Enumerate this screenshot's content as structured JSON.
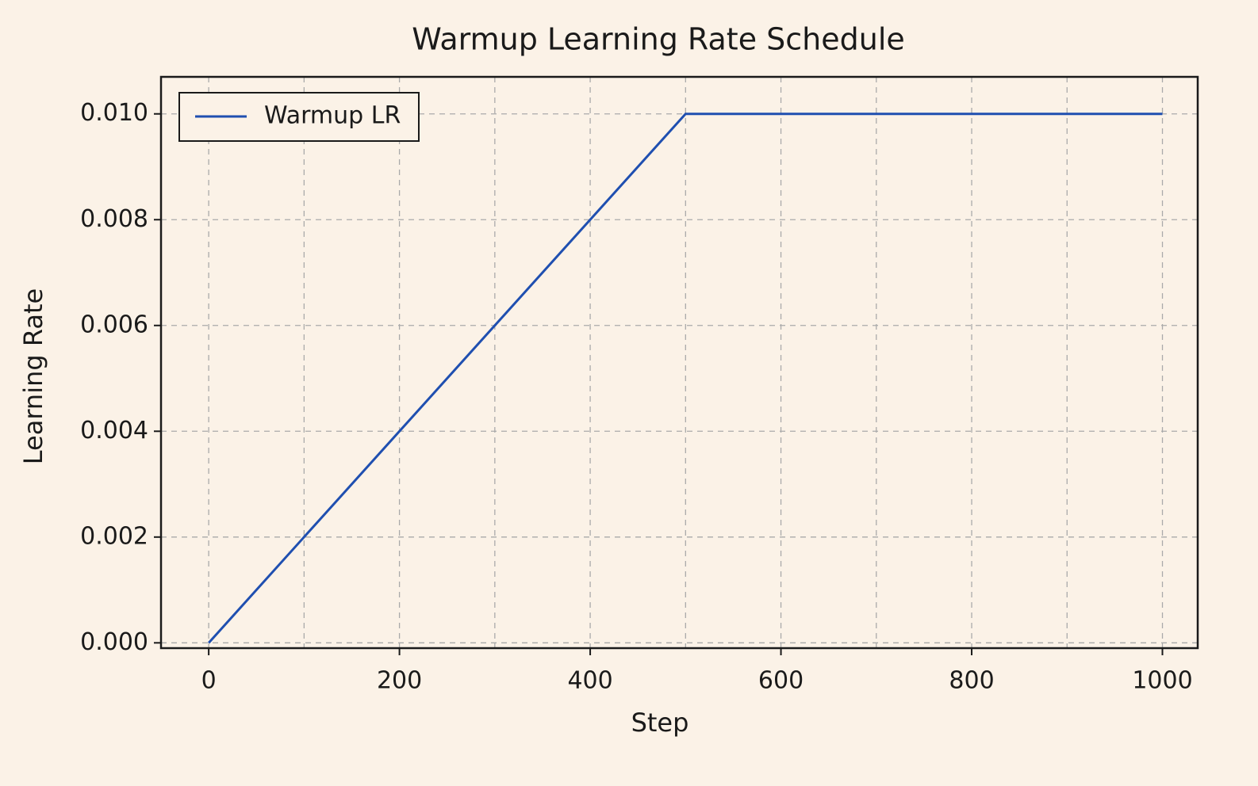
{
  "chart_data": {
    "type": "line",
    "title": "Warmup Learning Rate Schedule",
    "x_label": "Step",
    "y_label": "Learning Rate",
    "x": [
      0,
      500,
      1000
    ],
    "series": [
      {
        "name": "Warmup LR",
        "color": "#1f4fb0",
        "values": [
          0,
          0.01,
          0.01
        ]
      }
    ],
    "xlim": [
      -50,
      1037
    ],
    "xticks": [
      0,
      200,
      400,
      600,
      800,
      1000
    ],
    "xminorgrid": [
      100,
      300,
      500,
      700,
      900
    ],
    "ylim": [
      -0.0001,
      0.0107
    ],
    "yticks": [
      {
        "value": 0,
        "label": "0.000"
      },
      0.002,
      0.004,
      0.006,
      0.008,
      {
        "value": 0.01,
        "label": "0.010"
      }
    ],
    "grid": true,
    "legend": "upper left"
  }
}
